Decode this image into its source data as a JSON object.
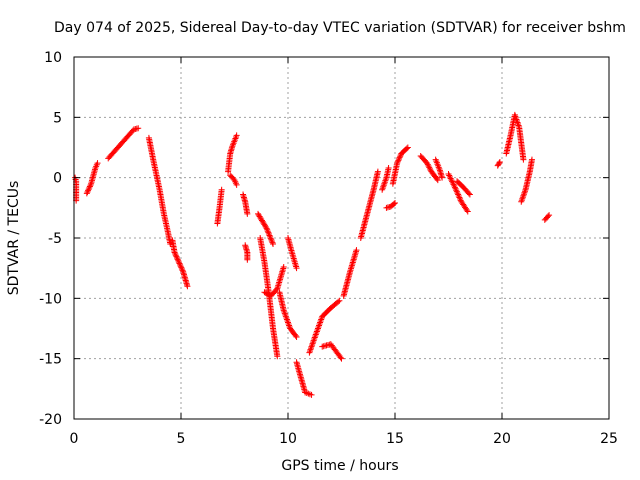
{
  "chart_data": {
    "type": "scatter",
    "title": "Day 074 of 2025, Sidereal Day-to-day VTEC variation (SDTVAR) for receiver bshm",
    "xlabel": "GPS time / hours",
    "ylabel": "SDTVAR / TECUs",
    "xlim": [
      0,
      25
    ],
    "ylim": [
      -20,
      10
    ],
    "xticks": [
      0,
      5,
      10,
      15,
      20,
      25
    ],
    "yticks": [
      -20,
      -15,
      -10,
      -5,
      0,
      5,
      10
    ],
    "xtick_labels": [
      "0",
      "5",
      "10",
      "15",
      "20",
      "25"
    ],
    "ytick_labels": [
      "-20",
      "-15",
      "-10",
      "-5",
      "0",
      "5",
      "10"
    ],
    "grid": true,
    "marker": "+",
    "color": "#ff0000",
    "segments": [
      {
        "name": "s1",
        "points": [
          [
            0.05,
            0.0
          ],
          [
            0.1,
            -0.3
          ],
          [
            0.1,
            -1.9
          ]
        ]
      },
      {
        "name": "s2",
        "points": [
          [
            0.6,
            -1.3
          ],
          [
            0.8,
            -0.5
          ],
          [
            1.0,
            0.8
          ],
          [
            1.1,
            1.2
          ]
        ]
      },
      {
        "name": "s3",
        "points": [
          [
            1.6,
            1.6
          ],
          [
            2.0,
            2.4
          ],
          [
            2.5,
            3.4
          ],
          [
            2.8,
            4.0
          ],
          [
            3.0,
            4.1
          ]
        ]
      },
      {
        "name": "s4",
        "points": [
          [
            3.5,
            3.3
          ],
          [
            3.7,
            1.5
          ],
          [
            4.0,
            -1.0
          ],
          [
            4.2,
            -3.0
          ],
          [
            4.4,
            -4.6
          ],
          [
            4.5,
            -5.5
          ]
        ]
      },
      {
        "name": "s5",
        "points": [
          [
            4.6,
            -5.2
          ],
          [
            4.7,
            -6.2
          ],
          [
            4.9,
            -7.0
          ],
          [
            5.1,
            -7.8
          ],
          [
            5.2,
            -8.4
          ],
          [
            5.3,
            -9.0
          ]
        ]
      },
      {
        "name": "s6",
        "points": [
          [
            6.7,
            -3.8
          ],
          [
            6.8,
            -2.5
          ],
          [
            6.9,
            -1.0
          ]
        ]
      },
      {
        "name": "s7",
        "points": [
          [
            7.2,
            0.5
          ],
          [
            7.3,
            2.0
          ],
          [
            7.4,
            2.6
          ],
          [
            7.6,
            3.5
          ]
        ]
      },
      {
        "name": "s8",
        "points": [
          [
            7.3,
            0.2
          ],
          [
            7.5,
            -0.2
          ],
          [
            7.6,
            -0.6
          ]
        ]
      },
      {
        "name": "s9",
        "points": [
          [
            7.9,
            -1.4
          ],
          [
            8.0,
            -2.0
          ],
          [
            8.1,
            -3.0
          ]
        ]
      },
      {
        "name": "s10",
        "points": [
          [
            8.0,
            -5.6
          ],
          [
            8.1,
            -6.2
          ],
          [
            8.1,
            -6.8
          ]
        ]
      },
      {
        "name": "s11",
        "points": [
          [
            8.6,
            -3.0
          ],
          [
            9.0,
            -4.2
          ],
          [
            9.3,
            -5.5
          ]
        ]
      },
      {
        "name": "s12",
        "points": [
          [
            8.7,
            -5.0
          ],
          [
            8.9,
            -7.0
          ],
          [
            9.1,
            -9.5
          ],
          [
            9.3,
            -12.5
          ],
          [
            9.5,
            -14.8
          ]
        ]
      },
      {
        "name": "s13",
        "points": [
          [
            8.9,
            -9.5
          ],
          [
            9.2,
            -9.8
          ],
          [
            9.5,
            -9.2
          ],
          [
            9.8,
            -7.4
          ]
        ]
      },
      {
        "name": "s14",
        "points": [
          [
            9.6,
            -9.5
          ],
          [
            9.8,
            -11.0
          ],
          [
            10.1,
            -12.5
          ],
          [
            10.4,
            -13.2
          ]
        ]
      },
      {
        "name": "s15",
        "points": [
          [
            10.0,
            -5.0
          ],
          [
            10.2,
            -6.3
          ],
          [
            10.4,
            -7.5
          ]
        ]
      },
      {
        "name": "s16",
        "points": [
          [
            10.4,
            -15.3
          ],
          [
            10.8,
            -17.8
          ],
          [
            11.1,
            -18.0
          ]
        ]
      },
      {
        "name": "s17",
        "points": [
          [
            11.0,
            -14.5
          ],
          [
            11.3,
            -13.0
          ],
          [
            11.6,
            -11.5
          ],
          [
            12.0,
            -10.8
          ],
          [
            12.4,
            -10.2
          ]
        ]
      },
      {
        "name": "s18",
        "points": [
          [
            11.6,
            -14.0
          ],
          [
            12.0,
            -13.8
          ],
          [
            12.5,
            -15.0
          ]
        ]
      },
      {
        "name": "s19",
        "points": [
          [
            12.6,
            -9.8
          ],
          [
            12.9,
            -7.8
          ],
          [
            13.2,
            -6.0
          ]
        ]
      },
      {
        "name": "s20",
        "points": [
          [
            13.4,
            -5.0
          ],
          [
            13.7,
            -3.0
          ],
          [
            14.0,
            -1.0
          ],
          [
            14.2,
            0.5
          ]
        ]
      },
      {
        "name": "s21",
        "points": [
          [
            14.4,
            -1.0
          ],
          [
            14.6,
            0.0
          ],
          [
            14.7,
            0.8
          ]
        ]
      },
      {
        "name": "s22",
        "points": [
          [
            14.6,
            -2.5
          ],
          [
            14.8,
            -2.4
          ],
          [
            15.0,
            -2.1
          ]
        ]
      },
      {
        "name": "s23",
        "points": [
          [
            14.9,
            -0.5
          ],
          [
            15.1,
            1.2
          ],
          [
            15.3,
            2.0
          ],
          [
            15.6,
            2.5
          ]
        ]
      },
      {
        "name": "s24",
        "points": [
          [
            16.2,
            1.8
          ],
          [
            16.5,
            1.2
          ],
          [
            16.7,
            0.5
          ],
          [
            17.0,
            -0.2
          ]
        ]
      },
      {
        "name": "s25",
        "points": [
          [
            16.9,
            1.5
          ],
          [
            17.1,
            0.6
          ],
          [
            17.2,
            0.0
          ]
        ]
      },
      {
        "name": "s26",
        "points": [
          [
            17.5,
            0.3
          ],
          [
            17.8,
            -0.8
          ],
          [
            18.1,
            -2.0
          ],
          [
            18.4,
            -2.8
          ]
        ]
      },
      {
        "name": "s27",
        "points": [
          [
            17.9,
            -0.3
          ],
          [
            18.2,
            -0.8
          ],
          [
            18.5,
            -1.4
          ]
        ]
      },
      {
        "name": "s28",
        "points": [
          [
            19.8,
            1.0
          ],
          [
            19.9,
            1.3
          ]
        ]
      },
      {
        "name": "s29",
        "points": [
          [
            20.2,
            2.0
          ],
          [
            20.4,
            3.5
          ],
          [
            20.6,
            5.2
          ],
          [
            20.8,
            4.2
          ],
          [
            21.0,
            1.5
          ]
        ]
      },
      {
        "name": "s30",
        "points": [
          [
            20.9,
            -2.0
          ],
          [
            21.1,
            -1.0
          ],
          [
            21.3,
            0.5
          ],
          [
            21.4,
            1.5
          ]
        ]
      },
      {
        "name": "s31",
        "points": [
          [
            22.0,
            -3.5
          ],
          [
            22.2,
            -3.1
          ]
        ]
      }
    ]
  }
}
